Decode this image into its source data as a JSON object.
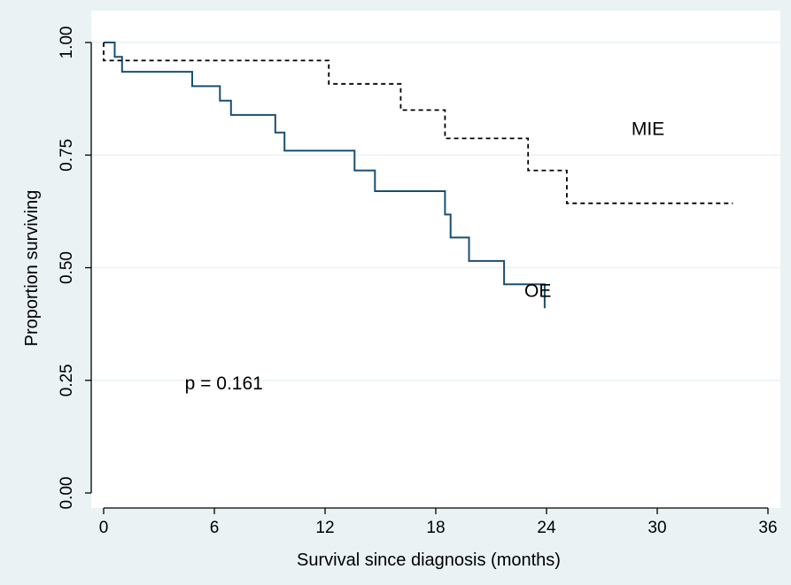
{
  "chart_data": {
    "type": "line",
    "subtype": "kaplan-meier step",
    "title": "",
    "xlabel": "Survival since diagnosis (months)",
    "ylabel": "Proportion surviving",
    "xlim": [
      0,
      36
    ],
    "ylim": [
      0,
      1
    ],
    "x_ticks": [
      0,
      6,
      12,
      18,
      24,
      30,
      36
    ],
    "x_tick_labels": [
      "0",
      "6",
      "12",
      "18",
      "24",
      "30",
      "36"
    ],
    "y_ticks": [
      0,
      0.25,
      0.5,
      0.75,
      1.0
    ],
    "y_tick_labels": [
      "0.00",
      "0.25",
      "0.50",
      "0.75",
      "1.00"
    ],
    "grid": "horizontal",
    "legend": "none",
    "colors": {
      "background": "#eaf2f3",
      "plot_area": "#ffffff",
      "oe_line": "#1b4f72",
      "mie_line": "#000000",
      "gridline": "#eaf2f3"
    },
    "series": [
      {
        "name": "OE",
        "style": "solid",
        "points": [
          [
            0,
            1.0
          ],
          [
            0.6,
            1.0
          ],
          [
            0.6,
            0.968
          ],
          [
            1.0,
            0.968
          ],
          [
            1.0,
            0.935
          ],
          [
            4.8,
            0.935
          ],
          [
            4.8,
            0.903
          ],
          [
            6.3,
            0.903
          ],
          [
            6.3,
            0.871
          ],
          [
            6.9,
            0.871
          ],
          [
            6.9,
            0.839
          ],
          [
            9.3,
            0.839
          ],
          [
            9.3,
            0.8
          ],
          [
            9.8,
            0.8
          ],
          [
            9.8,
            0.76
          ],
          [
            13.6,
            0.76
          ],
          [
            13.6,
            0.716
          ],
          [
            14.7,
            0.716
          ],
          [
            14.7,
            0.67
          ],
          [
            18.5,
            0.67
          ],
          [
            18.5,
            0.618
          ],
          [
            18.8,
            0.618
          ],
          [
            18.8,
            0.567
          ],
          [
            19.8,
            0.567
          ],
          [
            19.8,
            0.515
          ],
          [
            21.7,
            0.515
          ],
          [
            21.7,
            0.463
          ],
          [
            23.9,
            0.463
          ],
          [
            23.9,
            0.41
          ]
        ]
      },
      {
        "name": "MIE",
        "style": "dashed",
        "points": [
          [
            0,
            1.0
          ],
          [
            0,
            0.96
          ],
          [
            12.2,
            0.96
          ],
          [
            12.2,
            0.908
          ],
          [
            16.1,
            0.908
          ],
          [
            16.1,
            0.85
          ],
          [
            18.5,
            0.85
          ],
          [
            18.5,
            0.787
          ],
          [
            23.0,
            0.787
          ],
          [
            23.0,
            0.716
          ],
          [
            25.1,
            0.716
          ],
          [
            25.1,
            0.643
          ],
          [
            34.1,
            0.643
          ]
        ]
      }
    ],
    "annotations": [
      {
        "text": "MIE",
        "x": 28.6,
        "y": 0.795
      },
      {
        "text": "OE",
        "x": 22.8,
        "y": 0.435
      },
      {
        "text": "p = 0.161",
        "x": 4.4,
        "y": 0.23
      }
    ]
  }
}
